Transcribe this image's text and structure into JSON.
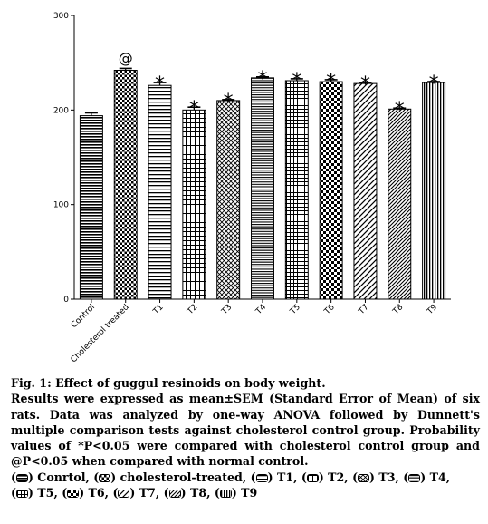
{
  "chart_data": {
    "type": "bar",
    "title": "",
    "xlabel": "",
    "ylabel": "",
    "ylim": [
      0,
      300
    ],
    "yticks": [
      "0",
      "100",
      "200",
      "300"
    ],
    "grid": false,
    "categories": [
      "Control",
      "Cholesterol treated",
      "T1",
      "T2",
      "T3",
      "T4",
      "T5",
      "T6",
      "T7",
      "T8",
      "T9"
    ],
    "values": [
      194,
      242,
      226,
      200,
      210,
      234,
      231,
      230,
      228,
      201,
      229
    ],
    "errors": [
      3,
      2,
      3,
      3,
      1,
      1,
      2,
      2,
      1,
      1,
      1
    ],
    "annotations": [
      "",
      "@",
      "*",
      "*",
      "*",
      "*",
      "*",
      "*",
      "*",
      "*",
      "*"
    ],
    "patterns": [
      "dense-horizontal",
      "checker-dots",
      "horizontal-lines",
      "grid",
      "cross-hatch",
      "fine-horizontal",
      "grid-dense",
      "checker",
      "diagonal-lines",
      "diagonal-dense",
      "vertical-lines"
    ]
  },
  "caption": {
    "title": "Fig. 1: Effect of guggul resinoids on body weight.",
    "body": "Results were expressed as mean±SEM (Standard Error of Mean) of six rats. Data was analyzed by one-way ANOVA followed by Dunnett's multiple comparison tests against cholesterol control group. Probability values of *P<0.05 were compared with cholesterol control group and @P<0.05 when compared with normal control.",
    "legend_line1": [
      {
        "label": "Conrtol,",
        "pattern": "dense-horizontal"
      },
      {
        "label": "cholesterol-treated,",
        "pattern": "checker-dots"
      },
      {
        "label": "T1,",
        "pattern": "horizontal-lines"
      },
      {
        "label": "T2,",
        "pattern": "grid"
      },
      {
        "label": "T3,",
        "pattern": "cross-hatch"
      },
      {
        "label": "T4,",
        "pattern": "fine-horizontal"
      }
    ],
    "legend_line2": [
      {
        "label": "T5,",
        "pattern": "grid-dense"
      },
      {
        "label": "T6,",
        "pattern": "checker"
      },
      {
        "label": "T7,",
        "pattern": "diagonal-lines"
      },
      {
        "label": "T8,",
        "pattern": "diagonal-dense"
      },
      {
        "label": "T9",
        "pattern": "vertical-lines"
      }
    ]
  }
}
